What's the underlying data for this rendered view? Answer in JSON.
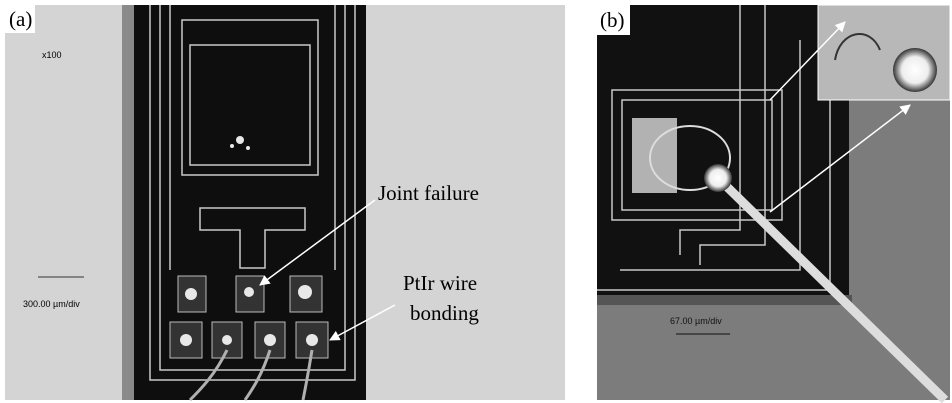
{
  "panels": [
    {
      "label": "(a)",
      "magnification": "x100",
      "scale": "300.00 µm/div",
      "annotations": [
        {
          "lines": [
            "Joint failure"
          ]
        },
        {
          "lines": [
            "PtIr wire",
            "bonding"
          ]
        }
      ]
    },
    {
      "label": "(b)",
      "scale": "67.00 µm/div"
    }
  ]
}
